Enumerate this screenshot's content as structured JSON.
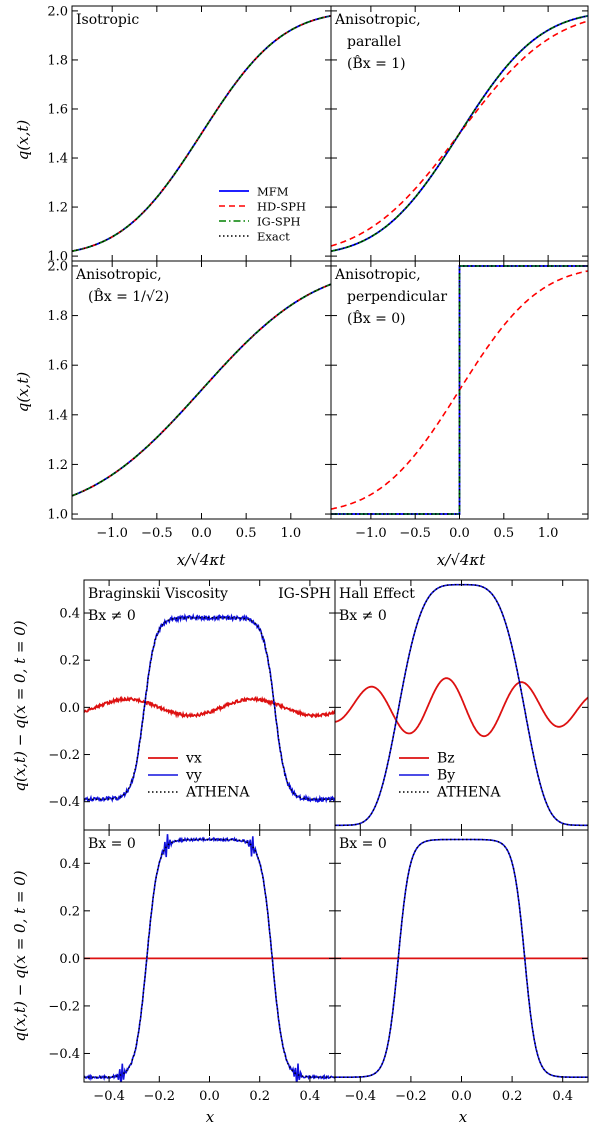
{
  "colors": {
    "mfm": "#0000ff",
    "hdsph": "#ff0000",
    "igsph": "#008000",
    "exact": "#000000",
    "red_series": "#dd1111",
    "blue_series": "#1111dd"
  },
  "labels": {
    "top_ylabel": "q(x,t)",
    "top_xlabel": "x/√4κt",
    "bottom_ylabel": "q(x,t) − q(x = 0, t = 0)",
    "bottom_xlabel": "x"
  },
  "chart_data": [
    {
      "type": "line",
      "panel": "isotropic",
      "annotation": [
        "Isotropic"
      ],
      "xlim": [
        -1.45,
        1.45
      ],
      "ylim": [
        0.98,
        2.02
      ],
      "xticks": [
        -1.0,
        -0.5,
        0.0,
        0.5,
        1.0
      ],
      "yticks": [
        1.0,
        1.2,
        1.4,
        1.6,
        1.8,
        2.0
      ],
      "legend": {
        "placement": "bottom-right",
        "entries": [
          "MFM",
          "HD-SPH",
          "IG-SPH",
          "Exact"
        ]
      },
      "series": [
        {
          "name": "MFM",
          "model": "erf",
          "scale": 1.0
        },
        {
          "name": "HD-SPH",
          "model": "erf",
          "scale": 1.0
        },
        {
          "name": "IG-SPH",
          "model": "erf",
          "scale": 1.0
        },
        {
          "name": "Exact",
          "model": "erf",
          "scale": 1.0
        }
      ]
    },
    {
      "type": "line",
      "panel": "anisotropic-parallel",
      "annotation": [
        "Anisotropic,",
        "parallel",
        "(B̂x = 1)"
      ],
      "xlim": [
        -1.45,
        1.45
      ],
      "ylim": [
        0.98,
        2.02
      ],
      "xticks": [
        -1.0,
        -0.5,
        0.0,
        0.5,
        1.0
      ],
      "yticks": [
        1.0,
        1.2,
        1.4,
        1.6,
        1.8,
        2.0
      ],
      "series": [
        {
          "name": "MFM",
          "model": "erf",
          "scale": 1.0
        },
        {
          "name": "HD-SPH",
          "model": "erf",
          "scale": 1.18
        },
        {
          "name": "IG-SPH",
          "model": "erf",
          "scale": 1.0
        },
        {
          "name": "Exact",
          "model": "erf",
          "scale": 1.0
        }
      ]
    },
    {
      "type": "line",
      "panel": "anisotropic-diagonal",
      "annotation": [
        "Anisotropic,",
        "(B̂x = 1/√2)"
      ],
      "xlim": [
        -1.45,
        1.45
      ],
      "ylim": [
        0.98,
        2.02
      ],
      "xticks": [
        -1.0,
        -0.5,
        0.0,
        0.5,
        1.0
      ],
      "yticks": [
        1.0,
        1.2,
        1.4,
        1.6,
        1.8,
        2.0
      ],
      "series": [
        {
          "name": "MFM",
          "model": "erf",
          "scale": 1.414
        },
        {
          "name": "HD-SPH",
          "model": "erf",
          "scale": 1.414
        },
        {
          "name": "IG-SPH",
          "model": "erf",
          "scale": 1.414
        },
        {
          "name": "Exact",
          "model": "erf",
          "scale": 1.414
        }
      ]
    },
    {
      "type": "line",
      "panel": "anisotropic-perpendicular",
      "annotation": [
        "Anisotropic,",
        "perpendicular",
        "(B̂x = 0)"
      ],
      "xlim": [
        -1.45,
        1.45
      ],
      "ylim": [
        0.98,
        2.02
      ],
      "xticks": [
        -1.0,
        -0.5,
        0.0,
        0.5,
        1.0
      ],
      "yticks": [
        1.0,
        1.2,
        1.4,
        1.6,
        1.8,
        2.0
      ],
      "series": [
        {
          "name": "MFM",
          "model": "step",
          "scale": 0.0
        },
        {
          "name": "HD-SPH",
          "model": "erf",
          "scale": 1.0
        },
        {
          "name": "IG-SPH",
          "model": "step",
          "scale": 0.0
        },
        {
          "name": "Exact",
          "model": "step",
          "scale": 0.0
        }
      ]
    },
    {
      "type": "line",
      "panel": "braginskii-nonzero",
      "annotation": [
        "Braginskii Viscosity",
        "Bx ≠ 0"
      ],
      "annotation_right": "IG-SPH",
      "xlim": [
        -0.5,
        0.5
      ],
      "ylim": [
        -0.52,
        0.54
      ],
      "xticks": [
        -0.4,
        -0.2,
        0.0,
        0.2,
        0.4
      ],
      "yticks": [
        -0.4,
        -0.2,
        0.0,
        0.2,
        0.4
      ],
      "legend": {
        "placement": "bottom-center",
        "entries": [
          "vx",
          "vy",
          "ATHENA"
        ]
      },
      "series": [
        {
          "name": "vx",
          "model": "osc",
          "amp": 0.035,
          "noise": 0.012
        },
        {
          "name": "vy",
          "model": "plateau",
          "amp": 0.77,
          "base": -0.39,
          "width": 0.26,
          "noise": 0.018
        },
        {
          "name": "ATHENA",
          "model": "plateau",
          "amp": 0.77,
          "base": -0.39,
          "width": 0.26
        }
      ]
    },
    {
      "type": "line",
      "panel": "hall-nonzero",
      "annotation": [
        "Hall Effect",
        "Bx ≠ 0"
      ],
      "xlim": [
        -0.5,
        0.5
      ],
      "ylim": [
        -0.52,
        0.54
      ],
      "xticks": [
        -0.4,
        -0.2,
        0.0,
        0.2,
        0.4
      ],
      "yticks": [
        -0.4,
        -0.2,
        0.0,
        0.2,
        0.4
      ],
      "legend": {
        "placement": "bottom-center",
        "entries": [
          "Bz",
          "By",
          "ATHENA"
        ]
      },
      "series": [
        {
          "name": "Bz",
          "model": "hallz",
          "amp": 0.125
        },
        {
          "name": "By",
          "model": "hally",
          "amp": 1.02,
          "base": -0.5
        },
        {
          "name": "ATHENA",
          "model": "hally",
          "amp": 1.02,
          "base": -0.5
        }
      ]
    },
    {
      "type": "line",
      "panel": "braginskii-zero",
      "annotation": [
        "Bx = 0"
      ],
      "xlim": [
        -0.5,
        0.5
      ],
      "ylim": [
        -0.52,
        0.54
      ],
      "xticks": [
        -0.4,
        -0.2,
        0.0,
        0.2,
        0.4
      ],
      "yticks": [
        -0.4,
        -0.2,
        0.0,
        0.2,
        0.4
      ],
      "series": [
        {
          "name": "vx",
          "model": "flat"
        },
        {
          "name": "vy",
          "model": "plateau",
          "amp": 1.0,
          "base": -0.5,
          "width": 0.25,
          "noise": 0.01,
          "spikes": true
        },
        {
          "name": "ATHENA",
          "model": "plateau",
          "amp": 1.0,
          "base": -0.5,
          "width": 0.25
        }
      ]
    },
    {
      "type": "line",
      "panel": "hall-zero",
      "annotation": [
        "Bx = 0"
      ],
      "xlim": [
        -0.5,
        0.5
      ],
      "ylim": [
        -0.52,
        0.54
      ],
      "xticks": [
        -0.4,
        -0.2,
        0.0,
        0.2,
        0.4
      ],
      "yticks": [
        -0.4,
        -0.2,
        0.0,
        0.2,
        0.4
      ],
      "series": [
        {
          "name": "Bz",
          "model": "flat"
        },
        {
          "name": "By",
          "model": "plateau",
          "amp": 1.0,
          "base": -0.5,
          "width": 0.25
        },
        {
          "name": "ATHENA",
          "model": "plateau",
          "amp": 1.0,
          "base": -0.5,
          "width": 0.25
        }
      ]
    }
  ]
}
